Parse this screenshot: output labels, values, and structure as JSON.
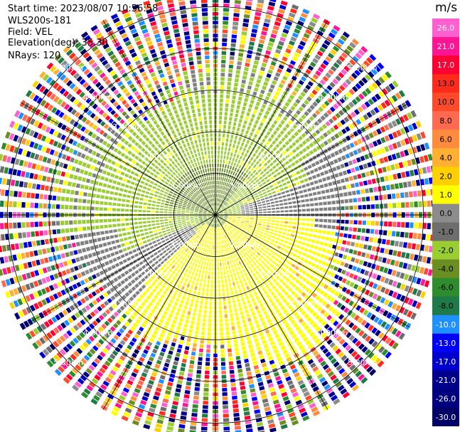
{
  "header": {
    "start_time": "Start time: 2023/08/07 10:56:58",
    "instrument": "WLS200s-181",
    "field": "Field: VEL",
    "elevation": "Elevation(deg): 35.30",
    "nrays": "NRays: 120"
  },
  "chart_data": {
    "type": "heatmap",
    "projection": "polar (PPI)",
    "title": "",
    "field": "VEL",
    "units": "m/s",
    "n_rays": 120,
    "elevation_deg": 35.3,
    "range_rings_km": [
      1.0,
      2.0,
      3.0,
      4.0,
      5.0
    ],
    "ring_labels": [
      "1.00km",
      "2.00km",
      "3.00km",
      "4.00km",
      "5.00km"
    ],
    "max_range_km": 5.4,
    "colorbar": {
      "title": "m/s",
      "ticks": [
        "26.0",
        "21.0",
        "17.0",
        "13.0",
        "10.0",
        "8.0",
        "6.0",
        "4.0",
        "2.0",
        "1.0",
        "0.0",
        "-1.0",
        "-2.0",
        "-4.0",
        "-6.0",
        "-8.0",
        "-10.0",
        "-13.0",
        "-17.0",
        "-21.0",
        "-26.0",
        "-30.0"
      ],
      "colors": [
        "#ff5fcf",
        "#ff1493",
        "#ff0033",
        "#ff2a1a",
        "#ff4a2a",
        "#ff6a50",
        "#ff8c3c",
        "#ffb030",
        "#ffd000",
        "#ffff00",
        "#8c8c8c",
        "#6e6e6e",
        "#9acd32",
        "#6b8e23",
        "#2e8b2e",
        "#1f7a4a",
        "#1e90ff",
        "#0000ff",
        "#0000cd",
        "#00008b",
        "#000080",
        "#000066"
      ]
    },
    "velocity_pattern": {
      "near_field": "approaching (negative, green/gray) to the north, receding (positive, yellow) to the south-east",
      "far_field": "noisy, random values beyond ~3.8 km"
    }
  }
}
